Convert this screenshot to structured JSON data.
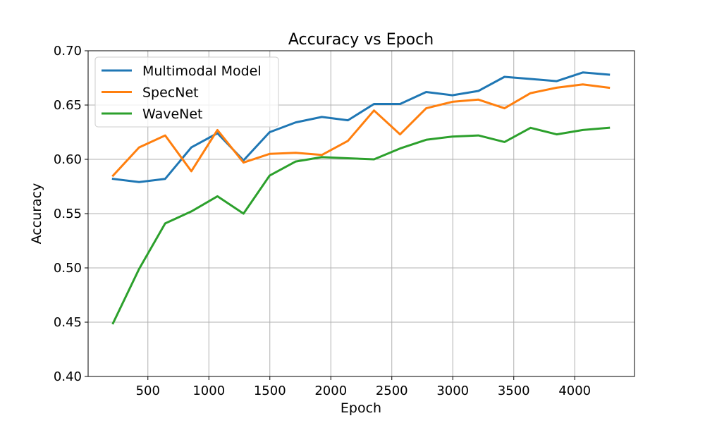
{
  "chart_data": {
    "type": "line",
    "title": "Accuracy vs Epoch",
    "xlabel": "Epoch",
    "ylabel": "Accuracy",
    "xlim": [
      10,
      4490
    ],
    "ylim": [
      0.4,
      0.7
    ],
    "xticks": [
      500,
      1000,
      1500,
      2000,
      2500,
      3000,
      3500,
      4000
    ],
    "xtick_labels": [
      "500",
      "1000",
      "1500",
      "2000",
      "2500",
      "3000",
      "3500",
      "4000"
    ],
    "yticks": [
      0.4,
      0.45,
      0.5,
      0.55,
      0.6,
      0.65,
      0.7
    ],
    "ytick_labels": [
      "0.40",
      "0.45",
      "0.50",
      "0.55",
      "0.60",
      "0.65",
      "0.70"
    ],
    "grid": true,
    "legend_position": "top-left",
    "x": [
      214,
      428,
      642,
      856,
      1070,
      1284,
      1498,
      1712,
      1926,
      2140,
      2354,
      2568,
      2782,
      2996,
      3210,
      3424,
      3638,
      3852,
      4066,
      4280
    ],
    "series": [
      {
        "name": "Multimodal Model",
        "color": "#1f77b4",
        "values": [
          0.582,
          0.579,
          0.582,
          0.611,
          0.624,
          0.599,
          0.625,
          0.634,
          0.639,
          0.636,
          0.651,
          0.651,
          0.662,
          0.659,
          0.663,
          0.676,
          0.674,
          0.672,
          0.68,
          0.678
        ]
      },
      {
        "name": "SpecNet",
        "color": "#ff7f0e",
        "values": [
          0.585,
          0.611,
          0.622,
          0.589,
          0.627,
          0.597,
          0.605,
          0.606,
          0.604,
          0.617,
          0.645,
          0.623,
          0.647,
          0.653,
          0.655,
          0.647,
          0.661,
          0.666,
          0.669,
          0.666
        ]
      },
      {
        "name": "WaveNet",
        "color": "#2ca02c",
        "values": [
          0.449,
          0.499,
          0.541,
          0.552,
          0.566,
          0.55,
          0.585,
          0.598,
          0.602,
          0.601,
          0.6,
          0.61,
          0.618,
          0.621,
          0.622,
          0.616,
          0.629,
          0.623,
          0.627,
          0.629
        ]
      }
    ]
  }
}
